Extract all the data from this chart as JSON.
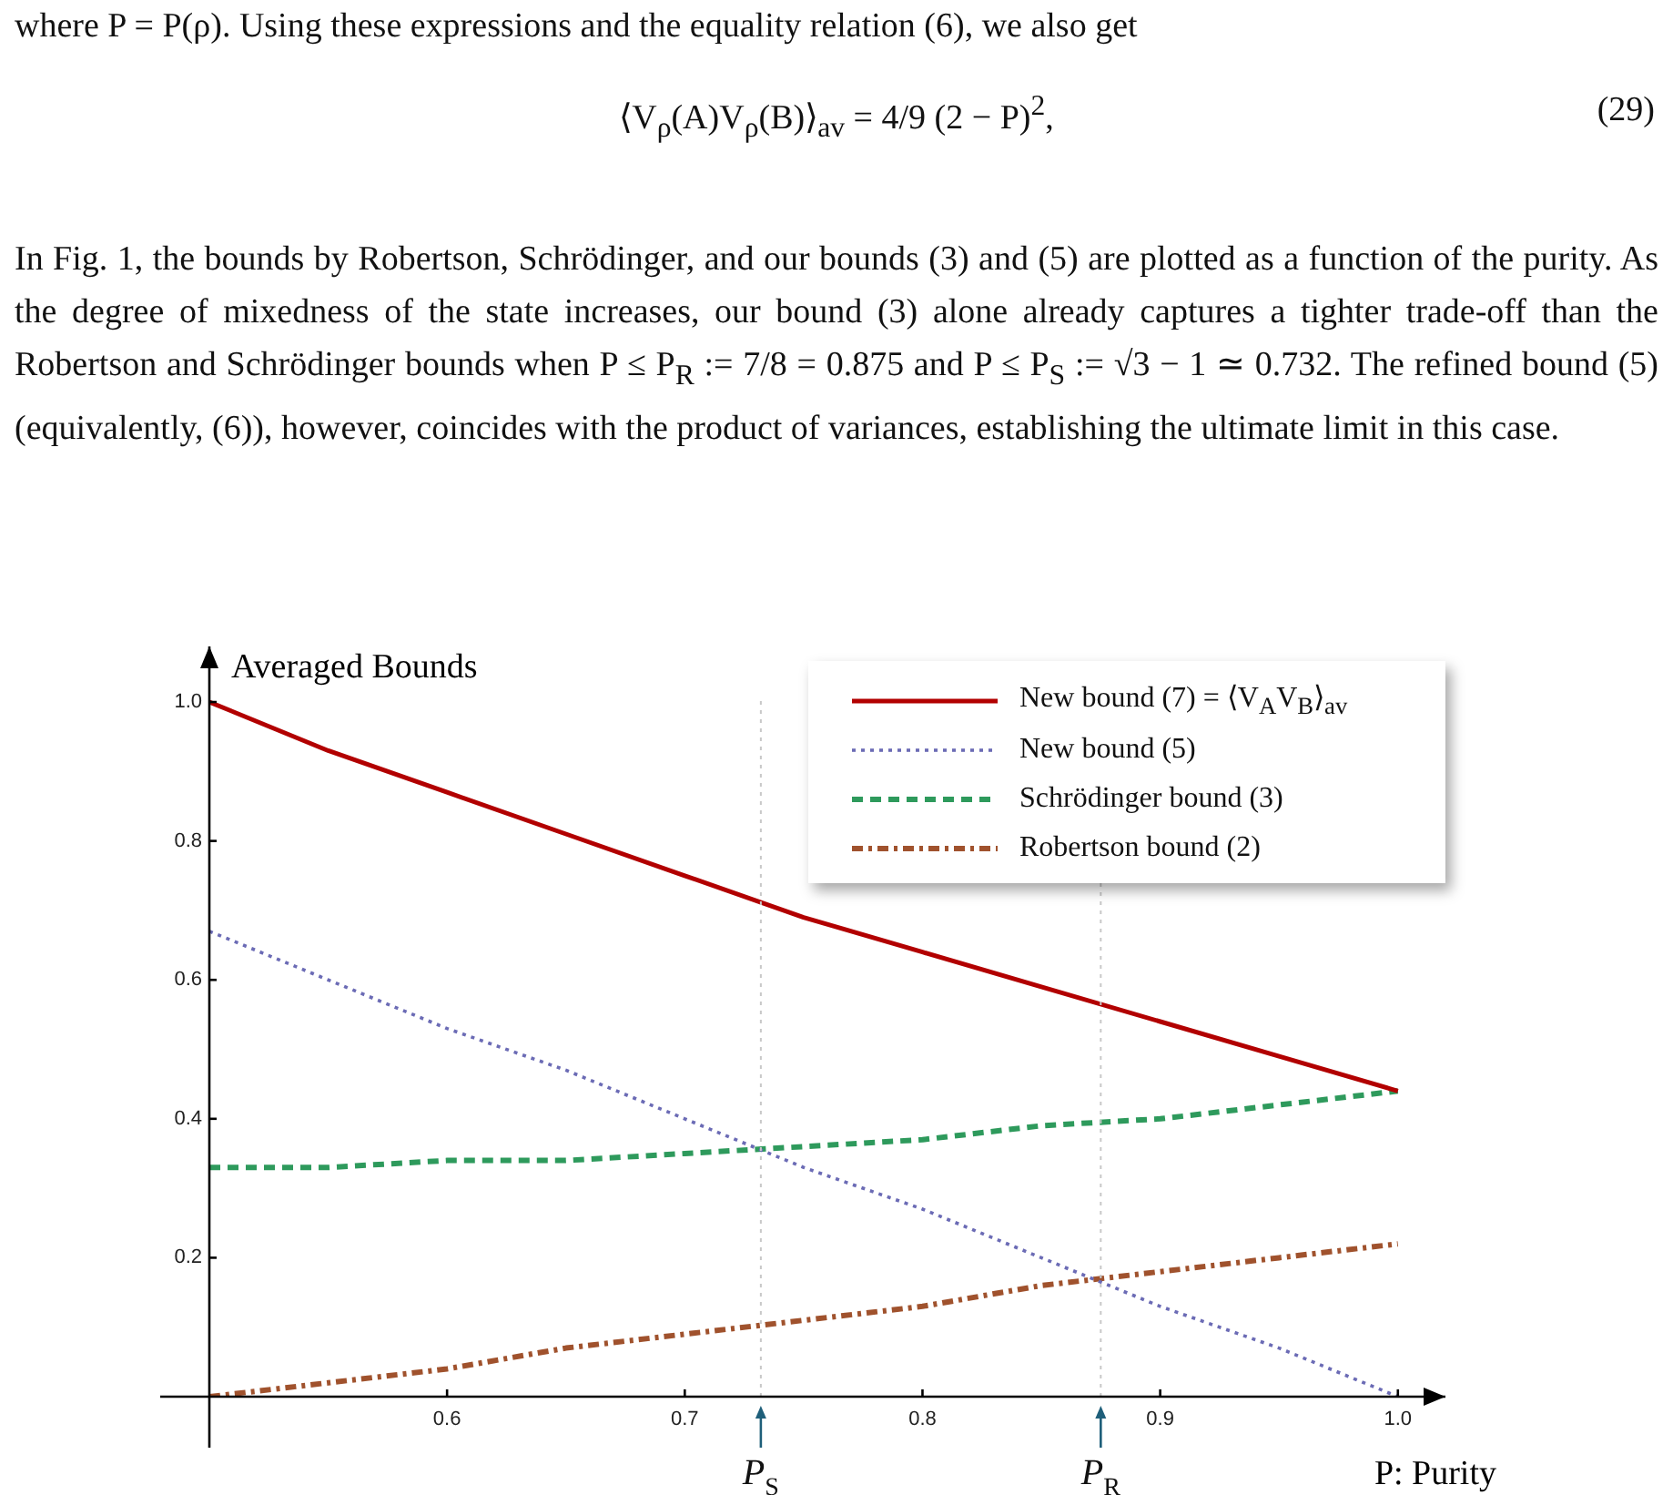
{
  "chart_data": {
    "type": "line",
    "annotations": [
      "where P = P(ρ). Using these expressions and the equality relation (6), we also get",
      "⟨V$_{ρ}$(A)V$_{ρ}$(B)⟩$_{av}$ = 4/9 (2 − P)$^{2}$,",
      "(29)",
      "In Fig. 1, the bounds by Robertson, Schrödinger, and our bounds (3) and (5) are plotted as a function of the purity. As the degree of mixedness of the state increases, our bound (3) alone already captures a tighter trade-off than the Robertson and Schrödinger bounds when P ≤ P$_{R}$ := 7/8 = 0.875 and P ≤ P$_{S}$ := √3 − 1 ≃ 0.732. The refined bound (5) (equivalently, (6)), however, coincides with the product of variances, establishing the ultimate limit in this case."
    ],
    "ylabel": "Averaged Bounds",
    "xlabel": "P: Purity",
    "x": [
      0.5,
      0.55,
      0.6,
      0.65,
      0.7,
      0.75,
      0.8,
      0.85,
      0.9,
      0.95,
      1.0
    ],
    "series": [
      {
        "name": "New bound (7) = ⟨V$_{A}$V$_{B}$⟩$_{av}$",
        "color": "#b20000",
        "line_style": "solid",
        "values": [
          1.0,
          0.93,
          0.87,
          0.81,
          0.75,
          0.69,
          0.64,
          0.59,
          0.54,
          0.49,
          0.44
        ]
      },
      {
        "name": "New bound (5)",
        "color": "#6b6bb5",
        "line_style": "dotted",
        "values": [
          0.67,
          0.6,
          0.53,
          0.47,
          0.4,
          0.33,
          0.27,
          0.2,
          0.13,
          0.07,
          0
        ]
      },
      {
        "name": "Schrödinger bound (3)",
        "color": "#2e9a5c",
        "line_style": "dashed",
        "values": [
          0.33,
          0.33,
          0.34,
          0.34,
          0.35,
          0.36,
          0.37,
          0.39,
          0.4,
          0.42,
          0.44
        ]
      },
      {
        "name": "Robertson bound (2)",
        "color": "#a0522d",
        "line_style": "dashdot",
        "values": [
          0,
          0.02,
          0.04,
          0.07,
          0.09,
          0.11,
          0.13,
          0.16,
          0.18,
          0.2,
          0.22
        ]
      }
    ],
    "xlim": [
      0.5,
      1.02
    ],
    "ylim": [
      0,
      1.08
    ],
    "xticks": [
      {
        "value": 0.6,
        "label": "0.6"
      },
      {
        "value": 0.7,
        "label": "0.7"
      },
      {
        "value": 0.8,
        "label": "0.8"
      },
      {
        "value": 0.9,
        "label": "0.9"
      },
      {
        "value": 1,
        "label": "1.0"
      }
    ],
    "yticks": [
      {
        "value": 0.2,
        "label": "0.2"
      },
      {
        "value": 0.4,
        "label": "0.4"
      },
      {
        "value": 0.6,
        "label": "0.6"
      },
      {
        "value": 0.8,
        "label": "0.8"
      },
      {
        "value": 1,
        "label": "1.0"
      }
    ],
    "ref_lines": [
      {
        "axis": "x",
        "value": 0.732,
        "label": "P$_{S}$",
        "color": "#c8c8c8",
        "line_style": "dotted"
      },
      {
        "axis": "x",
        "value": 0.875,
        "label": "P$_{R}$",
        "color": "#c8c8c8",
        "line_style": "dotted"
      }
    ],
    "grid": false,
    "legend": "top right",
    "marker": "none"
  }
}
